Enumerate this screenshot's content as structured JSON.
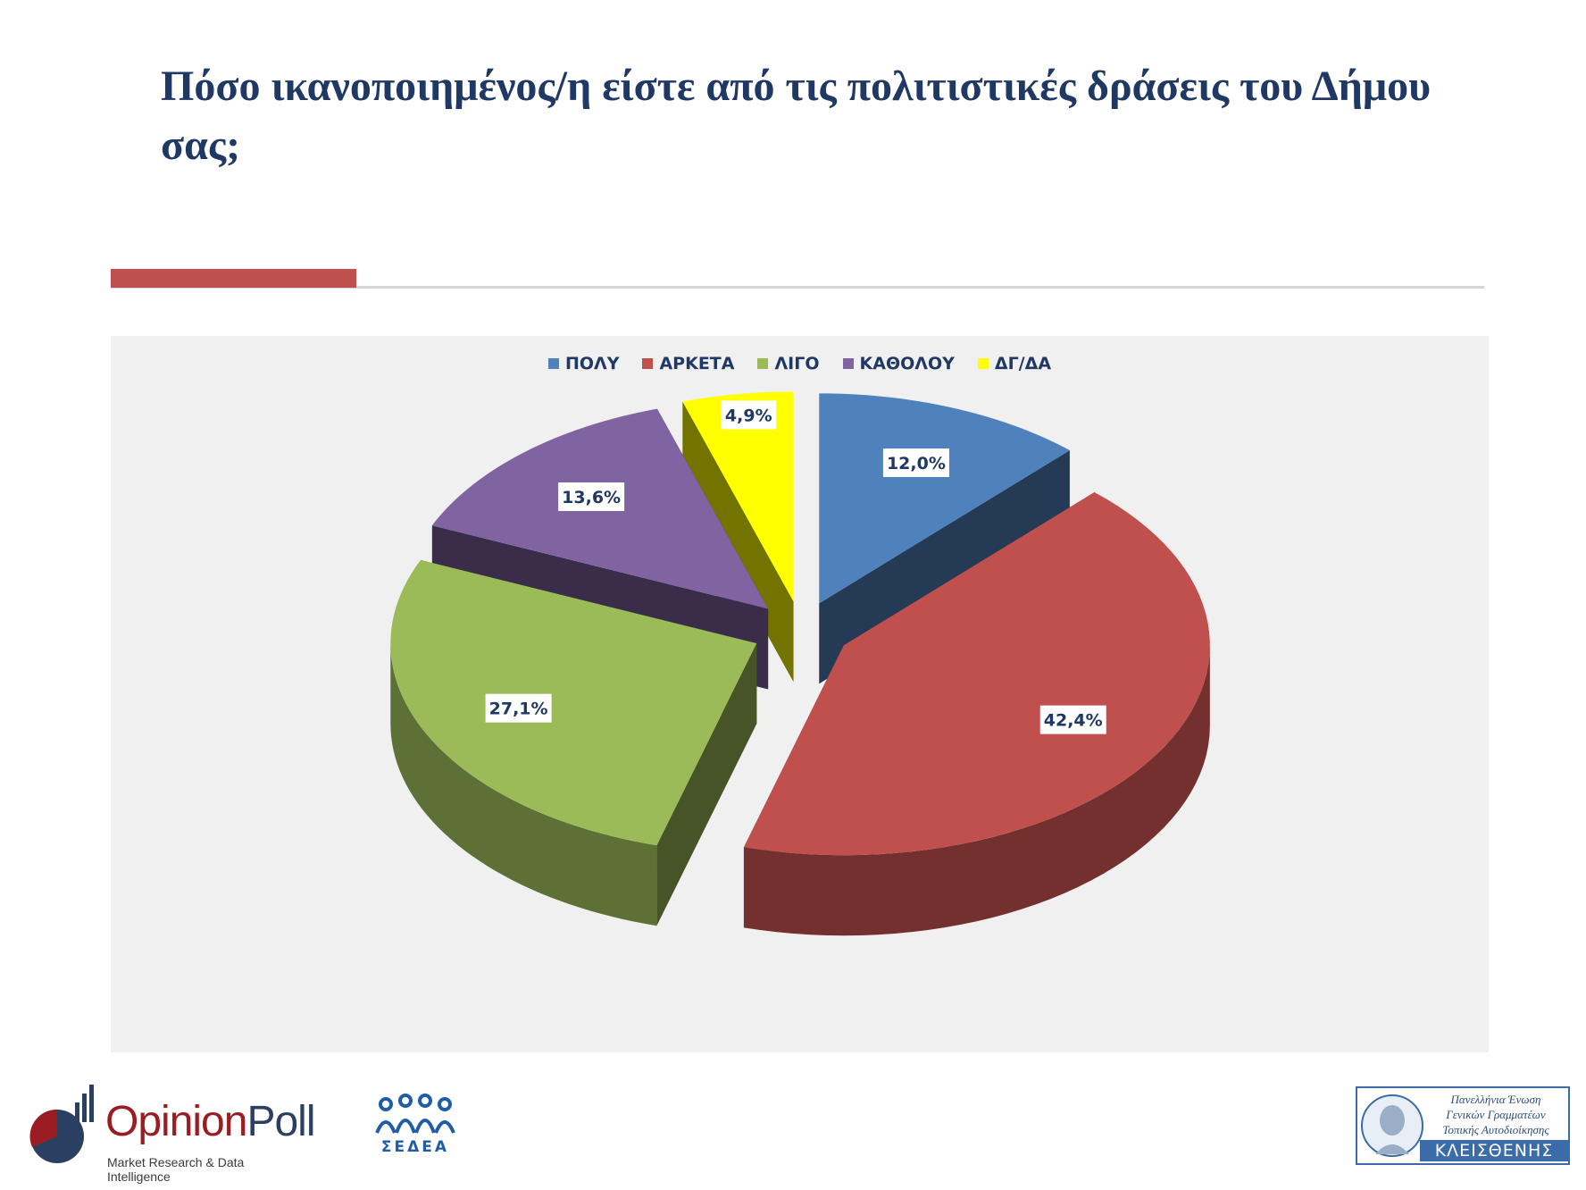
{
  "title": "Πόσο ικανοποιημένος/η είστε από τις πολιτιστικές δράσεις του Δήμου σας;",
  "chart_data": {
    "type": "pie",
    "categories": [
      "ΠΟΛΥ",
      "ΑΡΚΕΤΑ",
      "ΛΙΓΟ",
      "ΚΑΘΟΛΟΥ",
      "ΔΓ/ΔΑ"
    ],
    "values": [
      12.0,
      42.4,
      27.1,
      13.6,
      4.9
    ],
    "value_labels": [
      "12,0%",
      "42,4%",
      "27,1%",
      "13,6%",
      "4,9%"
    ],
    "colors": [
      "#4f81bd",
      "#c0504d",
      "#9bbb59",
      "#8064a2",
      "#ffff00"
    ],
    "legend_position": "top",
    "style": "3d-exploded"
  },
  "logos": {
    "opinionpoll": {
      "word1": "Opinion",
      "word2": "Poll",
      "tagline": "Market Research & Data Intelligence"
    },
    "sedea": {
      "name": "ΣΕΔΕΑ"
    },
    "kleisthenis": {
      "line1": "Πανελλήνια Ένωση",
      "line2": "Γενικών Γραμματέων",
      "line3": "Τοπικής Αυτοδιοίκησης",
      "name": "ΚΛΕΙΣΘΕΝΗΣ"
    }
  }
}
